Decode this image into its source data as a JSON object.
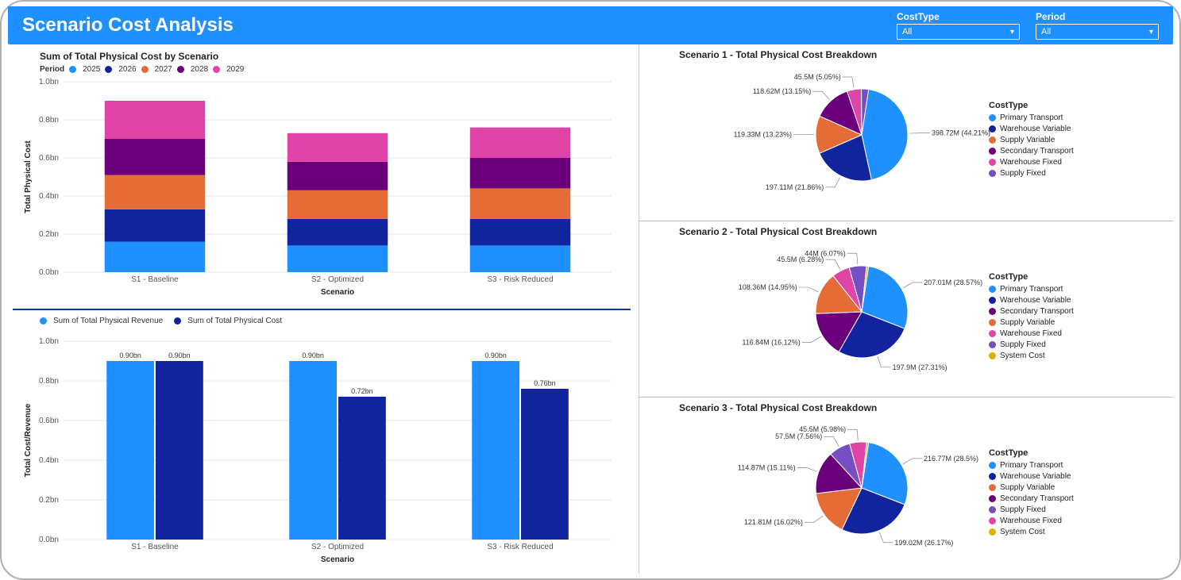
{
  "header": {
    "title": "Scenario Cost Analysis",
    "filters": [
      {
        "label": "CostType",
        "value": "All"
      },
      {
        "label": "Period",
        "value": "All"
      }
    ]
  },
  "colors": {
    "y2025": "#1e90ff",
    "y2026": "#12239e",
    "y2027": "#e66c37",
    "y2028": "#6b007b",
    "y2029": "#e044a7",
    "revenue": "#1e90ff",
    "cost": "#12239e",
    "pie": [
      "#1e90ff",
      "#12239e",
      "#e66c37",
      "#6b007b",
      "#e044a7",
      "#744ec2",
      "#d9b300"
    ]
  },
  "stacked_chart": {
    "title": "Sum of Total Physical Cost by Scenario",
    "legend_label": "Period",
    "ylabel": "Total Physical Cost",
    "xlabel": "Scenario",
    "ymax": 1.0,
    "ytick": 0.2,
    "yunit": "bn",
    "categories": [
      "S1 - Baseline",
      "S2 - Optimized",
      "S3 - Risk Reduced"
    ],
    "series": [
      {
        "name": "2025",
        "color": "#1e90ff",
        "values": [
          0.16,
          0.14,
          0.14
        ]
      },
      {
        "name": "2026",
        "color": "#12239e",
        "values": [
          0.17,
          0.14,
          0.14
        ]
      },
      {
        "name": "2027",
        "color": "#e66c37",
        "values": [
          0.18,
          0.15,
          0.16
        ]
      },
      {
        "name": "2028",
        "color": "#6b007b",
        "values": [
          0.19,
          0.15,
          0.16
        ]
      },
      {
        "name": "2029",
        "color": "#e044a7",
        "values": [
          0.2,
          0.15,
          0.16
        ]
      }
    ]
  },
  "grouped_chart": {
    "legend": [
      {
        "name": "Sum of Total Physical Revenue",
        "color": "#1e90ff"
      },
      {
        "name": "Sum of Total Physical Cost",
        "color": "#12239e"
      }
    ],
    "ylabel": "Total Cost/Revenue",
    "xlabel": "Scenario",
    "ymax": 1.0,
    "ytick": 0.2,
    "yunit": "bn",
    "categories": [
      "S1 - Baseline",
      "S2 - Optimized",
      "S3 - Risk Reduced"
    ],
    "data": [
      {
        "revenue": 0.9,
        "revenue_label": "0.90bn",
        "cost": 0.9,
        "cost_label": "0.90bn"
      },
      {
        "revenue": 0.9,
        "revenue_label": "0.90bn",
        "cost": 0.72,
        "cost_label": "0.72bn"
      },
      {
        "revenue": 0.9,
        "revenue_label": "0.90bn",
        "cost": 0.76,
        "cost_label": "0.76bn"
      }
    ]
  },
  "pies": [
    {
      "title": "Scenario 1 - Total Physical Cost Breakdown",
      "legend_title": "CostType",
      "slices": [
        {
          "label": "398.72M (44.21%)",
          "value": 44.21,
          "color": "#1e90ff",
          "name": "Primary Transport"
        },
        {
          "label": "197.11M (21.86%)",
          "value": 21.86,
          "color": "#12239e",
          "name": "Warehouse Variable"
        },
        {
          "label": "119.33M (13.23%)",
          "value": 13.23,
          "color": "#e66c37",
          "name": "Supply Variable"
        },
        {
          "label": "118.62M (13.15%)",
          "value": 13.15,
          "color": "#6b007b",
          "name": "Secondary Transport"
        },
        {
          "label": "45.5M (5.05%)",
          "value": 5.05,
          "color": "#e044a7",
          "name": "Warehouse Fixed"
        },
        {
          "label": "",
          "value": 2.5,
          "color": "#744ec2",
          "name": "Supply Fixed"
        }
      ]
    },
    {
      "title": "Scenario 2 - Total Physical Cost Breakdown",
      "legend_title": "CostType",
      "slices": [
        {
          "label": "207.01M (28.57%)",
          "value": 28.57,
          "color": "#1e90ff",
          "name": "Primary Transport"
        },
        {
          "label": "197.9M (27.31%)",
          "value": 27.31,
          "color": "#12239e",
          "name": "Warehouse Variable"
        },
        {
          "label": "116.84M (16.12%)",
          "value": 16.12,
          "color": "#6b007b",
          "name": "Secondary Transport"
        },
        {
          "label": "108.36M (14.95%)",
          "value": 14.95,
          "color": "#e66c37",
          "name": "Supply Variable"
        },
        {
          "label": "45.5M (6.28%)",
          "value": 6.28,
          "color": "#e044a7",
          "name": "Warehouse Fixed"
        },
        {
          "label": "44M (6.07%)",
          "value": 6.07,
          "color": "#744ec2",
          "name": "Supply Fixed"
        },
        {
          "label": "",
          "value": 0.7,
          "color": "#d9b300",
          "name": "System Cost"
        }
      ]
    },
    {
      "title": "Scenario 3 - Total Physical Cost Breakdown",
      "legend_title": "CostType",
      "slices": [
        {
          "label": "216.77M (28.5%)",
          "value": 28.5,
          "color": "#1e90ff",
          "name": "Primary Transport"
        },
        {
          "label": "199.02M (26.17%)",
          "value": 26.17,
          "color": "#12239e",
          "name": "Warehouse Variable"
        },
        {
          "label": "121.81M (16.02%)",
          "value": 16.02,
          "color": "#e66c37",
          "name": "Supply Variable"
        },
        {
          "label": "114.87M (15.11%)",
          "value": 15.11,
          "color": "#6b007b",
          "name": "Secondary Transport"
        },
        {
          "label": "57.5M (7.56%)",
          "value": 7.56,
          "color": "#744ec2",
          "name": "Supply Fixed"
        },
        {
          "label": "45.5M (5.98%)",
          "value": 5.98,
          "color": "#e044a7",
          "name": "Warehouse Fixed"
        },
        {
          "label": "",
          "value": 0.66,
          "color": "#d9b300",
          "name": "System Cost"
        }
      ]
    }
  ]
}
